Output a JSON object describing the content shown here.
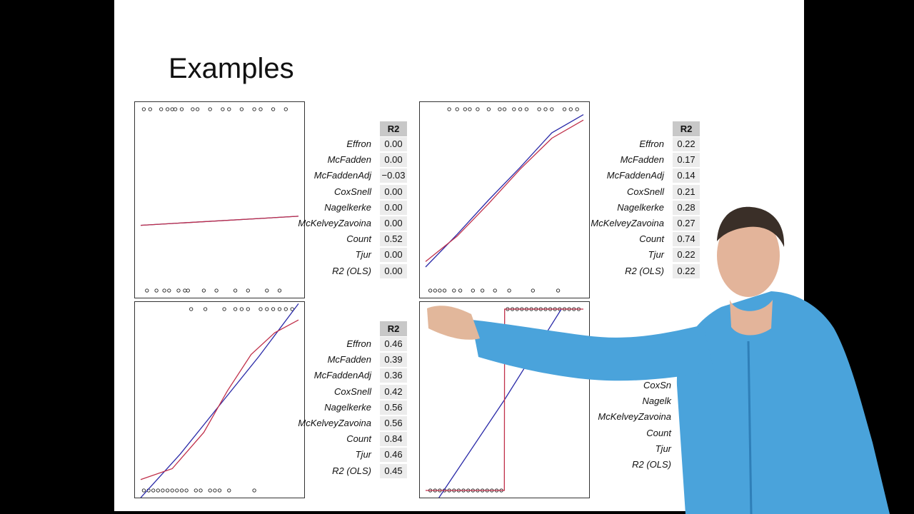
{
  "slide": {
    "title": "Examples"
  },
  "stats_header": "R2",
  "chart_data": [
    {
      "type": "scatter",
      "panel": "top-left",
      "x": [
        0.02,
        0.04,
        0.06,
        0.1,
        0.13,
        0.15,
        0.17,
        0.18,
        0.2,
        0.22,
        0.24,
        0.26,
        0.28,
        0.3,
        0.33,
        0.36,
        0.4,
        0.44,
        0.48,
        0.52,
        0.56,
        0.6,
        0.64,
        0.68,
        0.72,
        0.76,
        0.8,
        0.84,
        0.88,
        0.92
      ],
      "y": [
        1,
        0,
        1,
        0,
        1,
        0,
        1,
        0,
        1,
        1,
        0,
        1,
        0,
        0,
        1,
        1,
        0,
        1,
        0,
        1,
        1,
        0,
        1,
        0,
        1,
        1,
        0,
        1,
        0,
        1
      ],
      "series": [
        {
          "name": "",
          "color": "#2a2aa8",
          "curve": [
            [
              0,
              0.36
            ],
            [
              1,
              0.41
            ]
          ]
        },
        {
          "name": "",
          "color": "#c0304a",
          "curve": [
            [
              0,
              0.36
            ],
            [
              1,
              0.41
            ]
          ]
        }
      ],
      "stats": [
        {
          "label": "Effron",
          "value": "0.00"
        },
        {
          "label": "McFadden",
          "value": "0.00"
        },
        {
          "label": "McFaddenAdj",
          "value": "−0.03"
        },
        {
          "label": "CoxSnell",
          "value": "0.00"
        },
        {
          "label": "Nagelkerke",
          "value": "0.00"
        },
        {
          "label": "McKelveyZavoina",
          "value": "0.00"
        },
        {
          "label": "Count",
          "value": "0.52"
        },
        {
          "label": "Tjur",
          "value": "0.00"
        },
        {
          "label": "R2 (OLS)",
          "value": "0.00"
        }
      ]
    },
    {
      "type": "scatter",
      "panel": "top-right",
      "x": [
        0.03,
        0.06,
        0.09,
        0.12,
        0.15,
        0.18,
        0.2,
        0.22,
        0.25,
        0.28,
        0.3,
        0.33,
        0.36,
        0.4,
        0.44,
        0.47,
        0.5,
        0.53,
        0.56,
        0.6,
        0.64,
        0.68,
        0.72,
        0.76,
        0.8,
        0.84,
        0.88,
        0.92,
        0.96
      ],
      "y": [
        0,
        0,
        0,
        0,
        1,
        0,
        1,
        0,
        1,
        1,
        0,
        1,
        0,
        1,
        0,
        1,
        1,
        0,
        1,
        1,
        1,
        0,
        1,
        1,
        1,
        0,
        1,
        1,
        1
      ],
      "series": [
        {
          "name": "",
          "color": "#2a2aa8",
          "curve": [
            [
              0,
              0.13
            ],
            [
              0.2,
              0.31
            ],
            [
              0.4,
              0.5
            ],
            [
              0.6,
              0.68
            ],
            [
              0.8,
              0.87
            ],
            [
              1,
              0.97
            ]
          ]
        },
        {
          "name": "",
          "color": "#c0304a",
          "curve": [
            [
              0,
              0.16
            ],
            [
              0.2,
              0.3
            ],
            [
              0.4,
              0.48
            ],
            [
              0.6,
              0.67
            ],
            [
              0.8,
              0.84
            ],
            [
              1,
              0.94
            ]
          ]
        }
      ],
      "stats": [
        {
          "label": "Effron",
          "value": "0.22"
        },
        {
          "label": "McFadden",
          "value": "0.17"
        },
        {
          "label": "McFaddenAdj",
          "value": "0.14"
        },
        {
          "label": "CoxSnell",
          "value": "0.21"
        },
        {
          "label": "Nagelkerke",
          "value": "0.28"
        },
        {
          "label": "McKelveyZavoina",
          "value": "0.27"
        },
        {
          "label": "Count",
          "value": "0.74"
        },
        {
          "label": "Tjur",
          "value": "0.22"
        },
        {
          "label": "R2 (OLS)",
          "value": "0.22"
        }
      ]
    },
    {
      "type": "scatter",
      "panel": "bottom-left",
      "x": [
        0.02,
        0.05,
        0.08,
        0.11,
        0.14,
        0.17,
        0.2,
        0.23,
        0.26,
        0.29,
        0.32,
        0.35,
        0.38,
        0.41,
        0.44,
        0.47,
        0.5,
        0.53,
        0.56,
        0.6,
        0.64,
        0.68,
        0.72,
        0.76,
        0.8,
        0.84,
        0.88,
        0.92,
        0.96
      ],
      "y": [
        0,
        0,
        0,
        0,
        0,
        0,
        0,
        0,
        0,
        0,
        1,
        0,
        0,
        1,
        0,
        0,
        0,
        1,
        0,
        1,
        1,
        1,
        0,
        1,
        1,
        1,
        1,
        1,
        1
      ],
      "series": [
        {
          "name": "",
          "color": "#2a2aa8",
          "curve": [
            [
              0,
              -0.04
            ],
            [
              0.25,
              0.2
            ],
            [
              0.5,
              0.47
            ],
            [
              0.75,
              0.74
            ],
            [
              1,
              1.03
            ]
          ]
        },
        {
          "name": "",
          "color": "#c0304a",
          "curve": [
            [
              0,
              0.06
            ],
            [
              0.2,
              0.12
            ],
            [
              0.4,
              0.32
            ],
            [
              0.55,
              0.55
            ],
            [
              0.7,
              0.75
            ],
            [
              0.85,
              0.87
            ],
            [
              1,
              0.94
            ]
          ]
        }
      ],
      "stats": [
        {
          "label": "Effron",
          "value": "0.46"
        },
        {
          "label": "McFadden",
          "value": "0.39"
        },
        {
          "label": "McFaddenAdj",
          "value": "0.36"
        },
        {
          "label": "CoxSnell",
          "value": "0.42"
        },
        {
          "label": "Nagelkerke",
          "value": "0.56"
        },
        {
          "label": "McKelveyZavoina",
          "value": "0.56"
        },
        {
          "label": "Count",
          "value": "0.84"
        },
        {
          "label": "Tjur",
          "value": "0.46"
        },
        {
          "label": "R2 (OLS)",
          "value": "0.45"
        }
      ]
    },
    {
      "type": "scatter",
      "panel": "bottom-right",
      "x": [
        0.03,
        0.06,
        0.09,
        0.12,
        0.15,
        0.18,
        0.21,
        0.24,
        0.27,
        0.3,
        0.33,
        0.36,
        0.39,
        0.42,
        0.45,
        0.48,
        0.52,
        0.55,
        0.58,
        0.61,
        0.64,
        0.67,
        0.7,
        0.73,
        0.76,
        0.79,
        0.82,
        0.85,
        0.88,
        0.91,
        0.94,
        0.97
      ],
      "y": [
        0,
        0,
        0,
        0,
        0,
        0,
        0,
        0,
        0,
        0,
        0,
        0,
        0,
        0,
        0,
        0,
        1,
        1,
        1,
        1,
        1,
        1,
        1,
        1,
        1,
        1,
        1,
        1,
        1,
        1,
        1,
        1
      ],
      "series": [
        {
          "name": "",
          "color": "#2a2aa8",
          "curve": [
            [
              0,
              -0.15
            ],
            [
              0.5,
              0.5
            ],
            [
              0.86,
              1.0
            ]
          ]
        },
        {
          "name": "",
          "color": "#c0304a",
          "curve": [
            [
              0,
              0
            ],
            [
              0.499,
              0
            ],
            [
              0.501,
              1
            ],
            [
              1,
              1
            ]
          ]
        }
      ],
      "stats": [
        {
          "label": "CoxSnell",
          "value": ""
        },
        {
          "label": "Nagelkerke",
          "value": ""
        },
        {
          "label": "McKelveyZavoina",
          "value": ""
        },
        {
          "label": "Count",
          "value": ""
        },
        {
          "label": "Tjur",
          "value": ""
        },
        {
          "label": "R2 (OLS)",
          "value": ""
        }
      ]
    }
  ],
  "stats_partial_labels": [
    "CoxSn",
    "Nagelk",
    "McKelveyZavoina",
    "Count",
    "Tjur",
    "R2 (OLS)"
  ]
}
